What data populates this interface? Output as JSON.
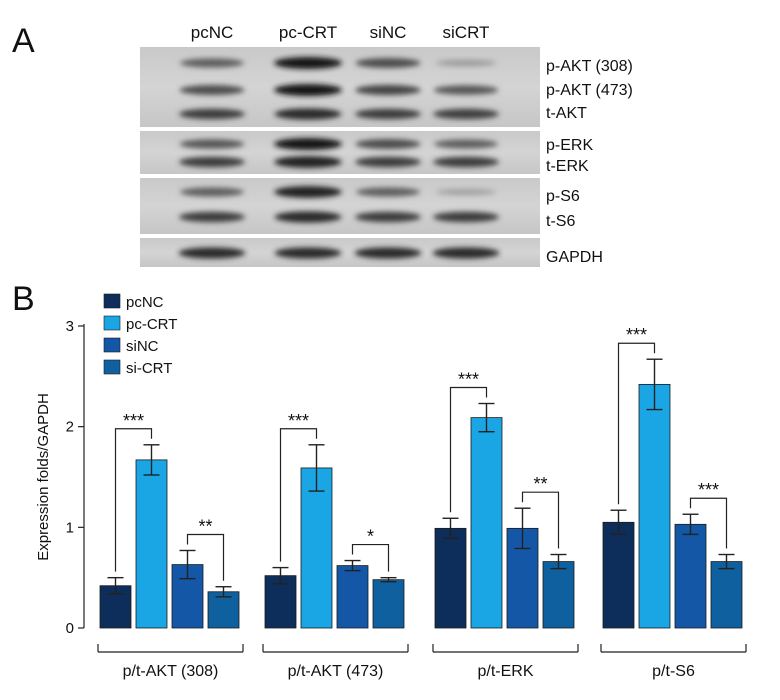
{
  "panel_a": {
    "label": "A",
    "lanes": [
      "pcNC",
      "pc-CRT",
      "siNC",
      "siCRT"
    ],
    "band_labels": [
      "p-AKT (308)",
      "p-AKT (473)",
      "t-AKT",
      "p-ERK",
      "t-ERK",
      "p-S6",
      "t-S6",
      "GAPDH"
    ],
    "band_intensity": [
      [
        0.6,
        1.0,
        0.7,
        0.25
      ],
      [
        0.7,
        1.0,
        0.75,
        0.65
      ],
      [
        0.8,
        0.9,
        0.8,
        0.78
      ],
      [
        0.65,
        1.0,
        0.7,
        0.6
      ],
      [
        0.8,
        0.95,
        0.8,
        0.8
      ],
      [
        0.6,
        0.95,
        0.6,
        0.22
      ],
      [
        0.8,
        0.9,
        0.8,
        0.8
      ],
      [
        0.9,
        0.9,
        0.9,
        0.9
      ]
    ]
  },
  "panel_b": {
    "label": "B",
    "chart_data": {
      "type": "bar",
      "categories": [
        "p/t-AKT (308)",
        "p/t-AKT (473)",
        "p/t-ERK",
        "p/t-S6"
      ],
      "series": [
        {
          "name": "pcNC",
          "color": "#0d2d5a",
          "values": [
            0.42,
            0.52,
            0.99,
            1.05
          ],
          "errors": [
            0.08,
            0.08,
            0.1,
            0.12
          ]
        },
        {
          "name": "pc-CRT",
          "color": "#1aa6e4",
          "values": [
            1.67,
            1.59,
            2.09,
            2.42
          ],
          "errors": [
            0.15,
            0.23,
            0.14,
            0.25
          ]
        },
        {
          "name": "siNC",
          "color": "#1357a6",
          "values": [
            0.63,
            0.62,
            0.99,
            1.03
          ],
          "errors": [
            0.14,
            0.05,
            0.2,
            0.1
          ]
        },
        {
          "name": "si-CRT",
          "color": "#0e609e",
          "values": [
            0.36,
            0.48,
            0.66,
            0.66
          ],
          "errors": [
            0.05,
            0.02,
            0.07,
            0.07
          ]
        }
      ],
      "ylabel": "Expression folds/GAPDH",
      "xlabel": "",
      "ylim": [
        0,
        3
      ],
      "yticks": [
        0,
        1,
        2,
        3
      ],
      "significance": [
        {
          "category": 0,
          "from": 0,
          "to": 1,
          "label": "***"
        },
        {
          "category": 0,
          "from": 2,
          "to": 3,
          "label": "**"
        },
        {
          "category": 1,
          "from": 0,
          "to": 1,
          "label": "***"
        },
        {
          "category": 1,
          "from": 2,
          "to": 3,
          "label": "*"
        },
        {
          "category": 2,
          "from": 0,
          "to": 1,
          "label": "***"
        },
        {
          "category": 2,
          "from": 2,
          "to": 3,
          "label": "**"
        },
        {
          "category": 3,
          "from": 0,
          "to": 1,
          "label": "***"
        },
        {
          "category": 3,
          "from": 2,
          "to": 3,
          "label": "***"
        }
      ],
      "legend_position": "top-left"
    }
  }
}
